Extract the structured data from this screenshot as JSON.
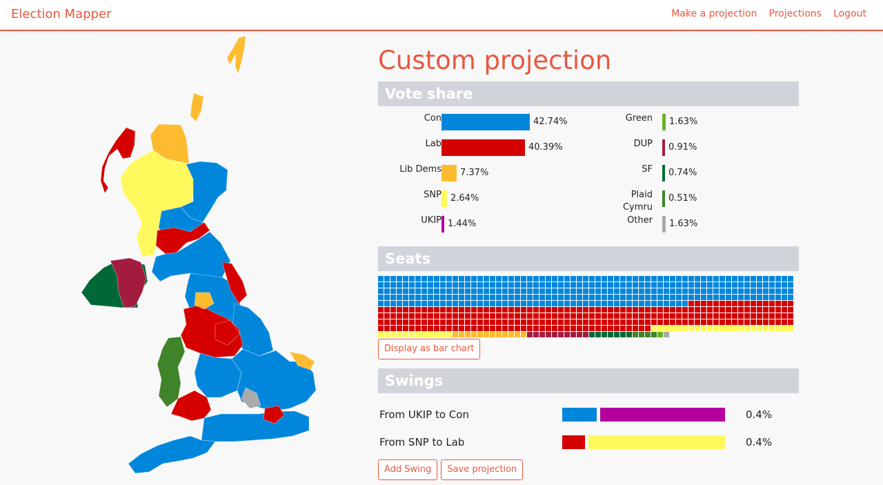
{
  "nav": {
    "brand": "Election Mapper",
    "links": [
      "Make a projection",
      "Projections",
      "Logout"
    ]
  },
  "title": "Custom projection",
  "colors": {
    "accent": "#e9573f",
    "Con": "#0087dc",
    "Lab": "#d50000",
    "Lib Dems": "#fdbb30",
    "SNP": "#fff95d",
    "UKIP": "#b3009d",
    "Green": "#6ab023",
    "DUP": "#a31c40",
    "SF": "#006837",
    "Plaid Cymru": "#3f8428",
    "Other": "#aaaaaa"
  },
  "vote_share": {
    "heading": "Vote share",
    "left": [
      {
        "party": "Con",
        "value": 42.74,
        "label": "42.74%"
      },
      {
        "party": "Lab",
        "value": 40.39,
        "label": "40.39%"
      },
      {
        "party": "Lib Dems",
        "value": 7.37,
        "label": "7.37%"
      },
      {
        "party": "SNP",
        "value": 2.64,
        "label": "2.64%"
      },
      {
        "party": "UKIP",
        "value": 1.44,
        "label": "1.44%"
      }
    ],
    "right": [
      {
        "party": "Green",
        "value": 1.63,
        "label": "1.63%"
      },
      {
        "party": "DUP",
        "value": 0.91,
        "label": "0.91%"
      },
      {
        "party": "SF",
        "value": 0.74,
        "label": "0.74%"
      },
      {
        "party": "Plaid Cymru",
        "value": 0.51,
        "label": "0.51%"
      },
      {
        "party": "Other",
        "value": 1.63,
        "label": "1.63%"
      }
    ]
  },
  "seats": {
    "heading": "Seats",
    "counts": [
      {
        "party": "Con",
        "seats": 318
      },
      {
        "party": "Lab",
        "seats": 262
      },
      {
        "party": "SNP",
        "seats": 35
      },
      {
        "party": "Lib Dems",
        "seats": 12
      },
      {
        "party": "DUP",
        "seats": 10
      },
      {
        "party": "SF",
        "seats": 7
      },
      {
        "party": "Plaid Cymru",
        "seats": 4
      },
      {
        "party": "Green",
        "seats": 1
      },
      {
        "party": "Other",
        "seats": 1
      }
    ],
    "display_button": "Display as bar chart"
  },
  "swings": {
    "heading": "Swings",
    "items": [
      {
        "label": "From UKIP to Con",
        "from": "UKIP",
        "to": "Con",
        "value": 0.4,
        "value_label": "0.4%",
        "to_share": 0.21
      },
      {
        "label": "From SNP to Lab",
        "from": "SNP",
        "to": "Lab",
        "value": 0.4,
        "value_label": "0.4%",
        "to_share": 0.14
      }
    ],
    "add_button": "Add Swing",
    "save_button": "Save projection"
  },
  "map": {
    "parties_shown": [
      "Con",
      "Lab",
      "SNP",
      "Lib Dems",
      "DUP",
      "SF",
      "Plaid Cymru",
      "Green",
      "Other"
    ]
  }
}
